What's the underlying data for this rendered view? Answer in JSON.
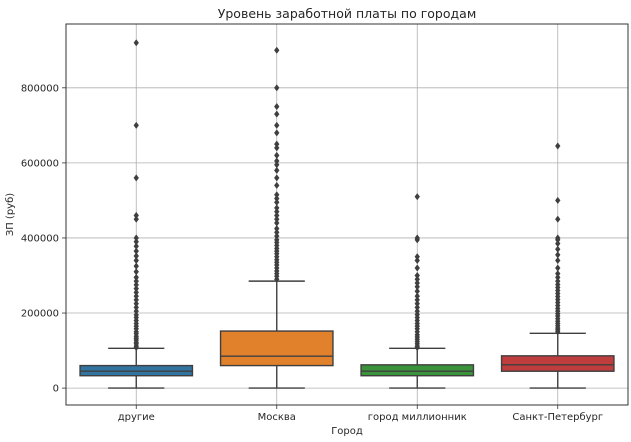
{
  "chart_data": {
    "type": "box",
    "title": "Уровень заработной платы по городам",
    "xlabel": "Город",
    "ylabel": "ЗП (руб)",
    "ylim": [
      -45000,
      970000
    ],
    "yticks": [
      0,
      200000,
      400000,
      600000,
      800000
    ],
    "ytick_labels": [
      "0",
      "200000",
      "400000",
      "600000",
      "800000"
    ],
    "grid": true,
    "categories": [
      "другие",
      "Москва",
      "город миллионник",
      "Санкт-Петербург"
    ],
    "boxes": [
      {
        "category": "другие",
        "color": "#3274a1",
        "whisker_low": 0,
        "q1": 33000,
        "median": 45000,
        "q3": 60000,
        "whisker_high": 106000,
        "outliers": [
          108000,
          112000,
          118000,
          122000,
          128000,
          133000,
          138000,
          145000,
          150000,
          158000,
          165000,
          172000,
          180000,
          188000,
          195000,
          205000,
          215000,
          225000,
          235000,
          245000,
          255000,
          265000,
          275000,
          285000,
          295000,
          310000,
          325000,
          340000,
          352000,
          365000,
          378000,
          390000,
          400000,
          450000,
          460000,
          560000,
          700000,
          920000
        ]
      },
      {
        "category": "Москва",
        "color": "#e1812c",
        "whisker_low": 0,
        "q1": 60000,
        "median": 85000,
        "q3": 152000,
        "whisker_high": 285000,
        "outliers": [
          290000,
          298000,
          305000,
          312000,
          320000,
          328000,
          335000,
          342000,
          350000,
          358000,
          365000,
          372000,
          380000,
          388000,
          395000,
          405000,
          415000,
          425000,
          440000,
          450000,
          460000,
          470000,
          480000,
          495000,
          505000,
          515000,
          540000,
          560000,
          580000,
          595000,
          605000,
          620000,
          640000,
          650000,
          680000,
          700000,
          730000,
          750000,
          800000,
          900000
        ]
      },
      {
        "category": "город миллионник",
        "color": "#3a923a",
        "whisker_low": 0,
        "q1": 33000,
        "median": 45000,
        "q3": 62000,
        "whisker_high": 106000,
        "outliers": [
          108000,
          112000,
          118000,
          124000,
          130000,
          136000,
          142000,
          150000,
          158000,
          165000,
          172000,
          180000,
          188000,
          196000,
          205000,
          215000,
          225000,
          235000,
          245000,
          258000,
          270000,
          280000,
          290000,
          300000,
          320000,
          340000,
          350000,
          395000,
          400000,
          510000
        ]
      },
      {
        "category": "Санкт-Петербург",
        "color": "#c03d3e",
        "whisker_low": 0,
        "q1": 45000,
        "median": 62000,
        "q3": 86000,
        "whisker_high": 146000,
        "outliers": [
          150000,
          155000,
          160000,
          166000,
          172000,
          178000,
          185000,
          192000,
          198000,
          205000,
          212000,
          220000,
          228000,
          236000,
          244000,
          252000,
          260000,
          268000,
          276000,
          285000,
          295000,
          305000,
          320000,
          340000,
          355000,
          370000,
          385000,
          395000,
          400000,
          450000,
          500000,
          645000
        ]
      }
    ]
  }
}
